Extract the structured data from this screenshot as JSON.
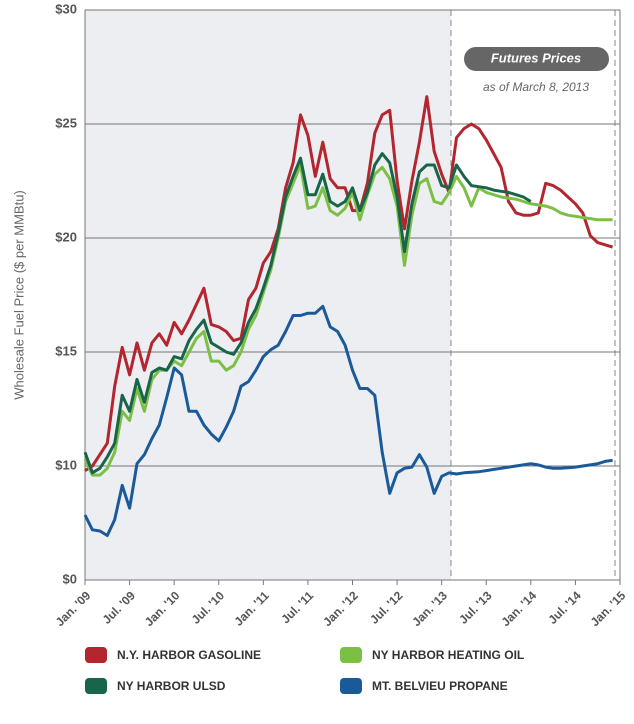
{
  "chart_data": {
    "type": "line",
    "y_label": "Wholesale Fuel Price ($ per MMBtu)",
    "annotations": [
      "Futures Prices",
      "as of March 8, 2013"
    ],
    "categories": [
      "Jan. '09",
      null,
      null,
      null,
      null,
      null,
      "Jul. '09",
      null,
      null,
      null,
      null,
      null,
      "Jan. '10",
      null,
      null,
      null,
      null,
      null,
      "Jul. '10",
      null,
      null,
      null,
      null,
      null,
      "Jan. '11",
      null,
      null,
      null,
      null,
      null,
      "Jul. '11",
      null,
      null,
      null,
      null,
      null,
      "Jan. '12",
      null,
      null,
      null,
      null,
      null,
      "Jul. '12",
      null,
      null,
      null,
      null,
      null,
      "Jan. '13",
      null,
      null,
      null,
      null,
      null,
      "Jul. '13",
      null,
      null,
      null,
      null,
      null,
      "Jan. '14",
      null,
      null,
      null,
      null,
      null,
      "Jul. '14",
      null,
      null,
      null,
      null,
      null,
      "Jan. '15"
    ],
    "series": [
      {
        "name": "N.Y. HARBOR GASOLINE",
        "color": "#b3262f",
        "values": [
          9.6,
          10.0,
          10.5,
          11.0,
          13.5,
          15.2,
          14.0,
          15.4,
          14.2,
          15.4,
          15.8,
          15.3,
          16.3,
          15.8,
          16.4,
          17.1,
          17.8,
          16.2,
          16.1,
          15.9,
          15.5,
          15.6,
          17.3,
          17.8,
          18.9,
          19.4,
          20.4,
          22.2,
          23.3,
          25.4,
          24.5,
          22.7,
          24.2,
          22.6,
          22.2,
          22.2,
          21.2,
          21.2,
          22.4,
          24.6,
          25.4,
          25.6,
          22.5,
          20.4,
          22.5,
          24.2,
          26.2,
          23.8,
          22.8,
          22.0,
          24.4,
          24.8,
          25.0,
          24.8,
          24.3,
          23.7,
          23.1,
          21.6,
          21.1,
          21.0,
          21.0,
          21.1,
          22.4,
          22.3,
          22.1,
          21.8,
          21.5,
          21.1,
          20.1,
          19.8,
          19.7,
          19.6,
          null
        ]
      },
      {
        "name": "NY HARBOR HEATING OIL",
        "color": "#7cbf45",
        "values": [
          10.3,
          9.2,
          9.2,
          9.8,
          10.6,
          12.4,
          12.0,
          13.4,
          12.4,
          13.8,
          14.2,
          14.2,
          14.6,
          14.4,
          15.0,
          15.6,
          15.9,
          14.6,
          14.6,
          14.2,
          14.4,
          15.0,
          16.0,
          16.6,
          17.6,
          18.6,
          20.0,
          21.6,
          22.4,
          23.2,
          21.3,
          21.4,
          22.2,
          21.2,
          21.0,
          21.3,
          22.0,
          20.8,
          21.9,
          22.8,
          23.1,
          22.6,
          21.4,
          18.8,
          21.0,
          22.4,
          22.6,
          21.6,
          21.5,
          22.0,
          22.7,
          22.2,
          21.4,
          22.2,
          22.0,
          21.9,
          21.8,
          21.75,
          21.7,
          21.6,
          21.5,
          21.45,
          21.4,
          21.3,
          21.1,
          21.0,
          20.95,
          20.9,
          20.85,
          20.8,
          20.8,
          20.8,
          null
        ]
      },
      {
        "name": "NY HARBOR ULSD",
        "color": "#19654a",
        "values": [
          10.6,
          9.4,
          9.8,
          10.4,
          11.0,
          13.1,
          12.4,
          13.8,
          12.8,
          14.1,
          14.3,
          14.2,
          14.8,
          14.7,
          15.5,
          16.0,
          16.4,
          15.4,
          15.2,
          15.0,
          14.9,
          15.4,
          16.3,
          16.9,
          17.8,
          18.8,
          20.2,
          21.8,
          22.7,
          23.5,
          21.9,
          21.9,
          22.8,
          21.6,
          21.4,
          21.6,
          22.2,
          21.2,
          22.0,
          23.2,
          23.7,
          23.3,
          21.8,
          19.4,
          21.5,
          22.9,
          23.2,
          23.2,
          22.3,
          22.2,
          23.2,
          22.7,
          22.3,
          22.25,
          22.2,
          22.1,
          22.05,
          22.0,
          21.9,
          21.8,
          21.6,
          null,
          null,
          null,
          null,
          null,
          null,
          null,
          null,
          null,
          null,
          null,
          null
        ]
      },
      {
        "name": "MT. BELVIEU PROPANE",
        "color": "#1b5a99",
        "values": [
          5.7,
          4.4,
          4.3,
          3.9,
          5.3,
          8.3,
          6.3,
          10.1,
          10.5,
          11.2,
          11.8,
          13.0,
          14.3,
          14.0,
          12.4,
          12.4,
          11.8,
          11.4,
          11.1,
          11.7,
          12.4,
          13.5,
          13.7,
          14.2,
          14.8,
          15.1,
          15.3,
          15.9,
          16.6,
          16.6,
          16.7,
          16.7,
          17.0,
          16.1,
          15.9,
          15.3,
          14.2,
          13.4,
          13.4,
          13.1,
          10.6,
          7.6,
          9.4,
          9.8,
          9.9,
          10.5,
          9.9,
          7.6,
          9.1,
          9.4,
          9.3,
          9.4,
          9.45,
          9.5,
          9.6,
          9.7,
          9.8,
          9.9,
          10.0,
          10.05,
          10.1,
          10.05,
          9.9,
          9.8,
          9.8,
          9.85,
          9.9,
          10.0,
          10.05,
          10.1,
          10.2,
          10.25,
          null
        ]
      }
    ],
    "ylim": [
      0,
      30
    ],
    "yticks": [
      {
        "value": 0,
        "label": "$0"
      },
      {
        "value": 10,
        "label": "$10"
      },
      {
        "value": 15,
        "label": "$15"
      },
      {
        "value": 20,
        "label": "$20"
      },
      {
        "value": 25,
        "label": "$25"
      },
      {
        "value": 30,
        "label": "$30"
      }
    ],
    "grid": true
  }
}
